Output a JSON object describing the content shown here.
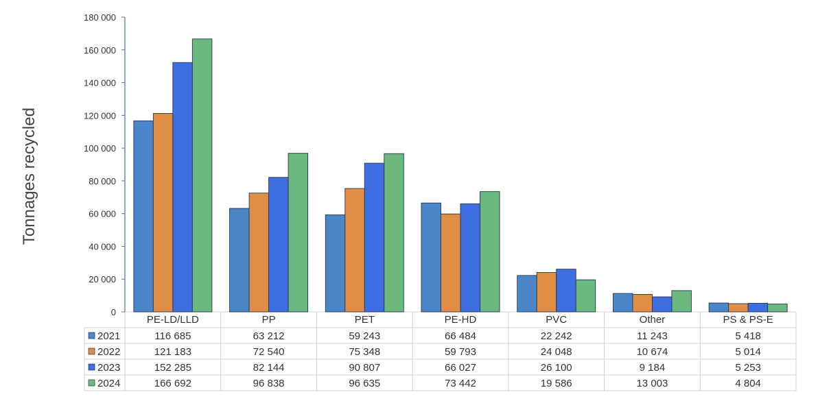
{
  "chart_data": {
    "type": "bar",
    "ylabel": "Tonnages recycled",
    "xlabel": "",
    "ylim": [
      0,
      180000
    ],
    "yticks": [
      0,
      20000,
      40000,
      60000,
      80000,
      100000,
      120000,
      140000,
      160000,
      180000
    ],
    "ytick_labels": [
      "0",
      "20 000",
      "40 000",
      "60 000",
      "80 000",
      "100 000",
      "120 000",
      "140 000",
      "160 000",
      "180 000"
    ],
    "categories": [
      "PE-LD/LLD",
      "PP",
      "PET",
      "PE-HD",
      "PVC",
      "Other",
      "PS & PS-E"
    ],
    "legend_placement": "data-table-left",
    "grid": false,
    "series": [
      {
        "name": "2021",
        "color": "#4A86C8",
        "values": [
          116685,
          63212,
          59243,
          66484,
          22242,
          11243,
          5418
        ],
        "labels": [
          "116 685",
          "63 212",
          "59 243",
          "66 484",
          "22 242",
          "11 243",
          "5 418"
        ]
      },
      {
        "name": "2022",
        "color": "#E08E45",
        "values": [
          121183,
          72540,
          75348,
          59793,
          24048,
          10674,
          5014
        ],
        "labels": [
          "121 183",
          "72 540",
          "75 348",
          "59 793",
          "24 048",
          "10 674",
          "5 014"
        ]
      },
      {
        "name": "2023",
        "color": "#3E6FE0",
        "values": [
          152285,
          82144,
          90807,
          66027,
          26100,
          9184,
          5253
        ],
        "labels": [
          "152 285",
          "82 144",
          "90 807",
          "66 027",
          "26 100",
          "9 184",
          "5 253"
        ]
      },
      {
        "name": "2024",
        "color": "#6CB97F",
        "values": [
          166692,
          96838,
          96635,
          73442,
          19586,
          13003,
          4804
        ],
        "labels": [
          "166 692",
          "96 838",
          "96 635",
          "73 442",
          "19 586",
          "13 003",
          "4 804"
        ]
      }
    ]
  }
}
